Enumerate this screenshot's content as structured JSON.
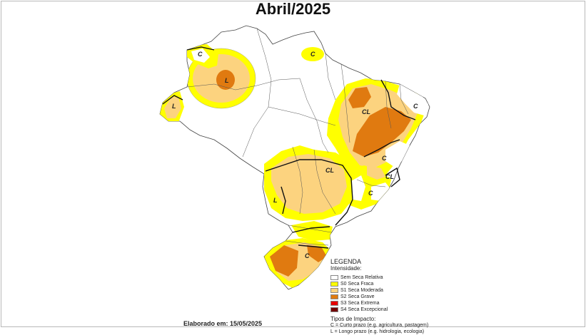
{
  "title": "Abril/2025",
  "legend": {
    "heading": "LEGENDA",
    "intensity_heading": "Intensidade:",
    "intensity": [
      {
        "label": "Sem Seca Relativa",
        "color": "#ffffff"
      },
      {
        "label": "S0 Seca Fraca",
        "color": "#ffff00"
      },
      {
        "label": "S1 Seca Moderada",
        "color": "#fcd37f"
      },
      {
        "label": "S2 Seca Grave",
        "color": "#e07a10"
      },
      {
        "label": "S3 Seca Extrema",
        "color": "#e60000"
      },
      {
        "label": "S4 Seca Excepcional",
        "color": "#730000"
      }
    ],
    "impact_heading": "Tipos de Impacto:",
    "impact": [
      "C = Curto prazo (e.g. agricultura, pastagem)",
      "L = Longo prazo (e.g. hidrologia, ecologia)"
    ]
  },
  "credit": "Elaborado em: 15/05/2025",
  "map_labels": {
    "c_roraima": "C",
    "l_amazonas": "L",
    "l_acre": "L",
    "c_amapa": "C",
    "cl_nordeste": "CL",
    "c_nordeste_coast": "C",
    "c_bahia": "C",
    "cl_espirito_santo": "CL",
    "cl_centro": "CL",
    "c_minas": "C",
    "l_ms": "L",
    "c_rs": "C"
  }
}
